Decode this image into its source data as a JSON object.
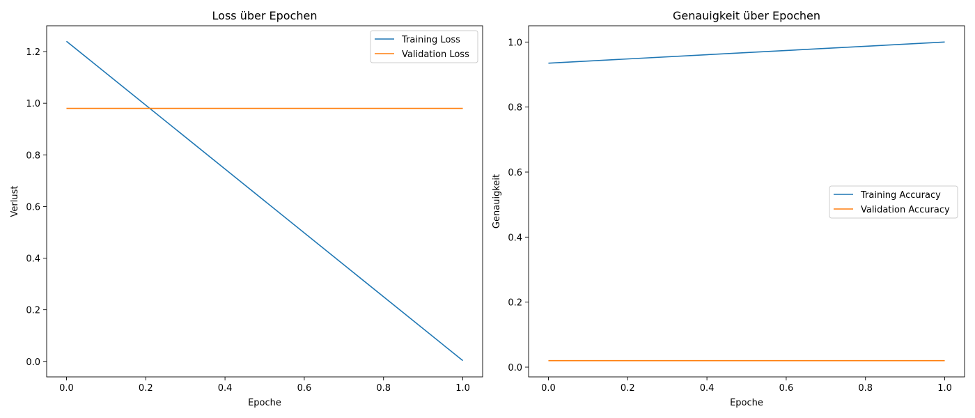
{
  "figure": {
    "background": "#ffffff"
  },
  "chart_data": [
    {
      "type": "line",
      "title": "Loss über Epochen",
      "xlabel": "Epoche",
      "ylabel": "Verlust",
      "xlim": [
        -0.05,
        1.05
      ],
      "ylim": [
        -0.06,
        1.3
      ],
      "xticks": [
        0.0,
        0.2,
        0.4,
        0.6,
        0.8,
        1.0
      ],
      "xtick_labels": [
        "0.0",
        "0.2",
        "0.4",
        "0.6",
        "0.8",
        "1.0"
      ],
      "yticks": [
        0.0,
        0.2,
        0.4,
        0.6,
        0.8,
        1.0,
        1.2
      ],
      "ytick_labels": [
        "0.0",
        "0.2",
        "0.4",
        "0.6",
        "0.8",
        "1.0",
        "1.2"
      ],
      "grid": false,
      "legend": "upper-right",
      "series": [
        {
          "name": "Training Loss",
          "color": "#1f77b4",
          "x": [
            0.0,
            1.0
          ],
          "y": [
            1.24,
            0.003
          ]
        },
        {
          "name": "Validation Loss",
          "color": "#ff7f0e",
          "x": [
            0.0,
            1.0
          ],
          "y": [
            0.98,
            0.98
          ]
        }
      ]
    },
    {
      "type": "line",
      "title": "Genauigkeit über Epochen",
      "xlabel": "Epoche",
      "ylabel": "Genauigkeit",
      "xlim": [
        -0.05,
        1.05
      ],
      "ylim": [
        -0.03,
        1.05
      ],
      "xticks": [
        0.0,
        0.2,
        0.4,
        0.6,
        0.8,
        1.0
      ],
      "xtick_labels": [
        "0.0",
        "0.2",
        "0.4",
        "0.6",
        "0.8",
        "1.0"
      ],
      "yticks": [
        0.0,
        0.2,
        0.4,
        0.6,
        0.8,
        1.0
      ],
      "ytick_labels": [
        "0.0",
        "0.2",
        "0.4",
        "0.6",
        "0.8",
        "1.0"
      ],
      "grid": false,
      "legend": "center-right",
      "series": [
        {
          "name": "Training Accuracy",
          "color": "#1f77b4",
          "x": [
            0.0,
            1.0
          ],
          "y": [
            0.935,
            1.0
          ]
        },
        {
          "name": "Validation Accuracy",
          "color": "#ff7f0e",
          "x": [
            0.0,
            1.0
          ],
          "y": [
            0.02,
            0.02
          ]
        }
      ]
    }
  ]
}
